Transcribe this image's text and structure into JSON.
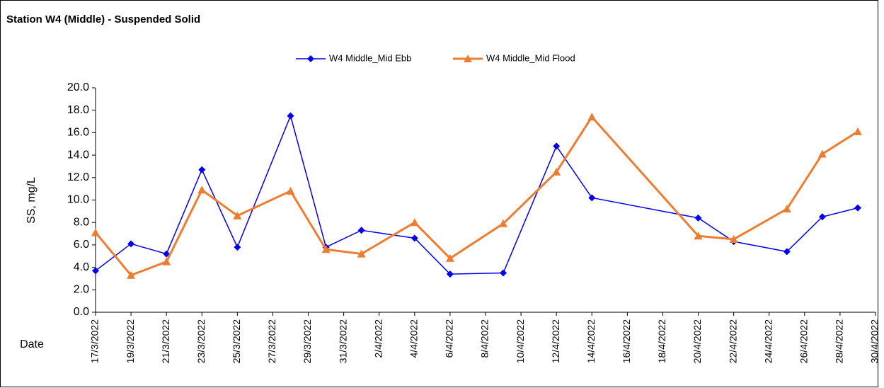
{
  "chart_data": {
    "type": "line",
    "title": "Station W4 (Middle) - Suspended Solid",
    "xlabel": "Date",
    "ylabel": "SS, mg/L",
    "x": [
      "17/3/2022",
      "19/3/2022",
      "21/3/2022",
      "23/3/2022",
      "25/3/2022",
      "28/3/2022",
      "30/3/2022",
      "1/4/2022",
      "4/4/2022",
      "6/4/2022",
      "9/4/2022",
      "12/4/2022",
      "14/4/2022",
      "20/4/2022",
      "22/4/2022",
      "25/4/2022",
      "27/4/2022",
      "29/4/2022"
    ],
    "series": [
      {
        "name": "W4 Middle_Mid Ebb",
        "color": "#0000ee",
        "marker": "diamond",
        "values": [
          3.7,
          6.1,
          5.2,
          12.7,
          5.8,
          17.5,
          5.8,
          7.3,
          6.6,
          3.4,
          3.5,
          14.8,
          10.2,
          8.4,
          6.3,
          5.4,
          8.5,
          9.3
        ]
      },
      {
        "name": "W4 Middle_Mid Flood",
        "color": "#ed7d31",
        "marker": "triangle",
        "values": [
          7.1,
          3.3,
          4.5,
          10.9,
          8.6,
          10.8,
          5.6,
          5.2,
          8.0,
          4.8,
          7.9,
          12.5,
          17.4,
          6.8,
          6.5,
          9.2,
          14.1,
          16.1
        ]
      }
    ],
    "xlim": [
      "17/3/2022",
      "30/4/2022"
    ],
    "xticks": [
      "17/3/2022",
      "19/3/2022",
      "21/3/2022",
      "23/3/2022",
      "25/3/2022",
      "27/3/2022",
      "29/3/2022",
      "31/3/2022",
      "2/4/2022",
      "4/4/2022",
      "6/4/2022",
      "8/4/2022",
      "10/4/2022",
      "12/4/2022",
      "14/4/2022",
      "16/4/2022",
      "18/4/2022",
      "20/4/2022",
      "22/4/2022",
      "24/4/2022",
      "26/4/2022",
      "28/4/2022",
      "30/4/2022"
    ],
    "ylim": [
      0,
      20
    ],
    "yticks": [
      {
        "value": 0,
        "label": "0.0"
      },
      {
        "value": 2,
        "label": "2.0"
      },
      {
        "value": 4,
        "label": "4.0"
      },
      {
        "value": 6,
        "label": "6.0"
      },
      {
        "value": 8,
        "label": "8.0"
      },
      {
        "value": 10,
        "label": "10.0"
      },
      {
        "value": 12,
        "label": "12.0"
      },
      {
        "value": 14,
        "label": "14.0"
      },
      {
        "value": 16,
        "label": "16.0"
      },
      {
        "value": 18,
        "label": "18.0"
      },
      {
        "value": 20,
        "label": "20.0"
      }
    ],
    "legend": "top",
    "grid": false
  }
}
